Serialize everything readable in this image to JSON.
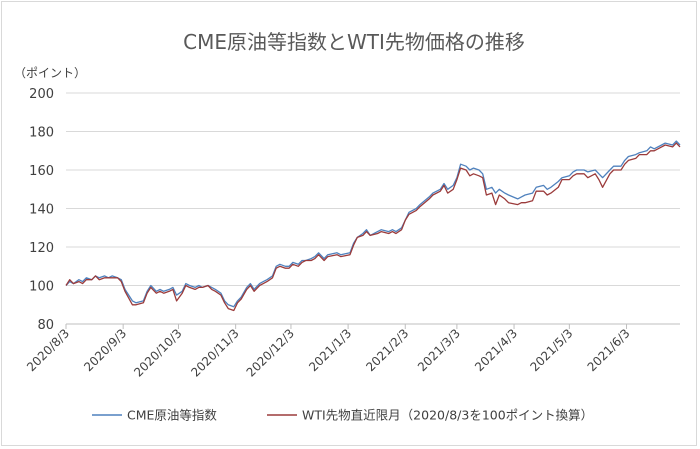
{
  "chart_data": {
    "type": "line",
    "title": "CME原油等指数とWTI先物価格の推移",
    "ylabel": "（ポイント）",
    "xlabel": "",
    "ylim": [
      80,
      200
    ],
    "yticks": [
      80,
      100,
      120,
      140,
      160,
      180,
      200
    ],
    "grid": true,
    "legend_position": "bottom",
    "x_ticks": [
      "2020/8/3",
      "2020/9/3",
      "2020/10/3",
      "2020/11/3",
      "2020/12/3",
      "2021/1/3",
      "2021/2/3",
      "2021/3/3",
      "2021/4/3",
      "2021/5/3",
      "2021/6/3"
    ],
    "series": [
      {
        "name": "CME原油等指数",
        "color": "#4f81bd",
        "points": [
          [
            "2020-08-03",
            100
          ],
          [
            "2020-08-05",
            102
          ],
          [
            "2020-08-07",
            101
          ],
          [
            "2020-08-10",
            103
          ],
          [
            "2020-08-12",
            102
          ],
          [
            "2020-08-14",
            104
          ],
          [
            "2020-08-17",
            103
          ],
          [
            "2020-08-19",
            105
          ],
          [
            "2020-08-21",
            104
          ],
          [
            "2020-08-24",
            105
          ],
          [
            "2020-08-26",
            104
          ],
          [
            "2020-08-28",
            105
          ],
          [
            "2020-08-31",
            104
          ],
          [
            "2020-09-02",
            103
          ],
          [
            "2020-09-04",
            98
          ],
          [
            "2020-09-08",
            92
          ],
          [
            "2020-09-10",
            91
          ],
          [
            "2020-09-14",
            92
          ],
          [
            "2020-09-16",
            97
          ],
          [
            "2020-09-18",
            100
          ],
          [
            "2020-09-21",
            97
          ],
          [
            "2020-09-23",
            98
          ],
          [
            "2020-09-25",
            97
          ],
          [
            "2020-09-28",
            98
          ],
          [
            "2020-09-30",
            99
          ],
          [
            "2020-10-02",
            95
          ],
          [
            "2020-10-05",
            97
          ],
          [
            "2020-10-07",
            101
          ],
          [
            "2020-10-09",
            100
          ],
          [
            "2020-10-12",
            99
          ],
          [
            "2020-10-14",
            100
          ],
          [
            "2020-10-16",
            99
          ],
          [
            "2020-10-19",
            100
          ],
          [
            "2020-10-21",
            99
          ],
          [
            "2020-10-23",
            98
          ],
          [
            "2020-10-26",
            96
          ],
          [
            "2020-10-28",
            92
          ],
          [
            "2020-10-30",
            90
          ],
          [
            "2020-11-02",
            89
          ],
          [
            "2020-11-04",
            92
          ],
          [
            "2020-11-06",
            94
          ],
          [
            "2020-11-09",
            99
          ],
          [
            "2020-11-11",
            101
          ],
          [
            "2020-11-13",
            98
          ],
          [
            "2020-11-16",
            101
          ],
          [
            "2020-11-18",
            102
          ],
          [
            "2020-11-20",
            103
          ],
          [
            "2020-11-23",
            105
          ],
          [
            "2020-11-25",
            110
          ],
          [
            "2020-11-27",
            111
          ],
          [
            "2020-11-30",
            110
          ],
          [
            "2020-12-02",
            110
          ],
          [
            "2020-12-04",
            112
          ],
          [
            "2020-12-07",
            111
          ],
          [
            "2020-12-09",
            113
          ],
          [
            "2020-12-11",
            113
          ],
          [
            "2020-12-14",
            114
          ],
          [
            "2020-12-16",
            115
          ],
          [
            "2020-12-18",
            117
          ],
          [
            "2020-12-21",
            114
          ],
          [
            "2020-12-23",
            116
          ],
          [
            "2020-12-28",
            117
          ],
          [
            "2020-12-30",
            116
          ],
          [
            "2021-01-04",
            117
          ],
          [
            "2021-01-06",
            122
          ],
          [
            "2021-01-08",
            125
          ],
          [
            "2021-01-11",
            127
          ],
          [
            "2021-01-13",
            129
          ],
          [
            "2021-01-15",
            126
          ],
          [
            "2021-01-19",
            128
          ],
          [
            "2021-01-21",
            129
          ],
          [
            "2021-01-25",
            128
          ],
          [
            "2021-01-27",
            129
          ],
          [
            "2021-01-29",
            128
          ],
          [
            "2021-02-01",
            130
          ],
          [
            "2021-02-03",
            134
          ],
          [
            "2021-02-05",
            138
          ],
          [
            "2021-02-09",
            140
          ],
          [
            "2021-02-11",
            142
          ],
          [
            "2021-02-16",
            146
          ],
          [
            "2021-02-18",
            148
          ],
          [
            "2021-02-22",
            150
          ],
          [
            "2021-02-24",
            153
          ],
          [
            "2021-02-26",
            150
          ],
          [
            "2021-03-01",
            152
          ],
          [
            "2021-03-03",
            156
          ],
          [
            "2021-03-05",
            163
          ],
          [
            "2021-03-08",
            162
          ],
          [
            "2021-03-10",
            160
          ],
          [
            "2021-03-12",
            161
          ],
          [
            "2021-03-15",
            160
          ],
          [
            "2021-03-17",
            158
          ],
          [
            "2021-03-19",
            150
          ],
          [
            "2021-03-22",
            151
          ],
          [
            "2021-03-24",
            148
          ],
          [
            "2021-03-26",
            150
          ],
          [
            "2021-03-29",
            148
          ],
          [
            "2021-03-31",
            147
          ],
          [
            "2021-04-05",
            145
          ],
          [
            "2021-04-07",
            146
          ],
          [
            "2021-04-09",
            147
          ],
          [
            "2021-04-13",
            148
          ],
          [
            "2021-04-15",
            151
          ],
          [
            "2021-04-19",
            152
          ],
          [
            "2021-04-21",
            150
          ],
          [
            "2021-04-23",
            151
          ],
          [
            "2021-04-27",
            154
          ],
          [
            "2021-04-29",
            156
          ],
          [
            "2021-05-03",
            157
          ],
          [
            "2021-05-05",
            159
          ],
          [
            "2021-05-07",
            160
          ],
          [
            "2021-05-11",
            160
          ],
          [
            "2021-05-13",
            159
          ],
          [
            "2021-05-17",
            160
          ],
          [
            "2021-05-19",
            158
          ],
          [
            "2021-05-21",
            156
          ],
          [
            "2021-05-25",
            160
          ],
          [
            "2021-05-27",
            162
          ],
          [
            "2021-05-31",
            162
          ],
          [
            "2021-06-02",
            165
          ],
          [
            "2021-06-04",
            167
          ],
          [
            "2021-06-08",
            168
          ],
          [
            "2021-06-10",
            169
          ],
          [
            "2021-06-14",
            170
          ],
          [
            "2021-06-16",
            172
          ],
          [
            "2021-06-18",
            171
          ],
          [
            "2021-06-22",
            173
          ],
          [
            "2021-06-24",
            174
          ],
          [
            "2021-06-28",
            173
          ],
          [
            "2021-06-30",
            175
          ],
          [
            "2021-07-02",
            173
          ]
        ]
      },
      {
        "name": "WTI先物直近限月（2020/8/3を100ポイント換算）",
        "color": "#9b3b3b",
        "points": [
          [
            "2020-08-03",
            100
          ],
          [
            "2020-08-05",
            103
          ],
          [
            "2020-08-07",
            101
          ],
          [
            "2020-08-10",
            102
          ],
          [
            "2020-08-12",
            101
          ],
          [
            "2020-08-14",
            103
          ],
          [
            "2020-08-17",
            103
          ],
          [
            "2020-08-19",
            105
          ],
          [
            "2020-08-21",
            103
          ],
          [
            "2020-08-24",
            104
          ],
          [
            "2020-08-26",
            104
          ],
          [
            "2020-08-28",
            104
          ],
          [
            "2020-08-31",
            104
          ],
          [
            "2020-09-02",
            102
          ],
          [
            "2020-09-04",
            97
          ],
          [
            "2020-09-08",
            90
          ],
          [
            "2020-09-10",
            90
          ],
          [
            "2020-09-14",
            91
          ],
          [
            "2020-09-16",
            96
          ],
          [
            "2020-09-18",
            99
          ],
          [
            "2020-09-21",
            96
          ],
          [
            "2020-09-23",
            97
          ],
          [
            "2020-09-25",
            96
          ],
          [
            "2020-09-28",
            97
          ],
          [
            "2020-09-30",
            98
          ],
          [
            "2020-10-02",
            92
          ],
          [
            "2020-10-05",
            96
          ],
          [
            "2020-10-07",
            100
          ],
          [
            "2020-10-09",
            99
          ],
          [
            "2020-10-12",
            98
          ],
          [
            "2020-10-14",
            99
          ],
          [
            "2020-10-16",
            99
          ],
          [
            "2020-10-19",
            100
          ],
          [
            "2020-10-21",
            98
          ],
          [
            "2020-10-23",
            97
          ],
          [
            "2020-10-26",
            95
          ],
          [
            "2020-10-28",
            91
          ],
          [
            "2020-10-30",
            88
          ],
          [
            "2020-11-02",
            87
          ],
          [
            "2020-11-04",
            91
          ],
          [
            "2020-11-06",
            93
          ],
          [
            "2020-11-09",
            98
          ],
          [
            "2020-11-11",
            100
          ],
          [
            "2020-11-13",
            97
          ],
          [
            "2020-11-16",
            100
          ],
          [
            "2020-11-18",
            101
          ],
          [
            "2020-11-20",
            102
          ],
          [
            "2020-11-23",
            104
          ],
          [
            "2020-11-25",
            109
          ],
          [
            "2020-11-27",
            110
          ],
          [
            "2020-11-30",
            109
          ],
          [
            "2020-12-02",
            109
          ],
          [
            "2020-12-04",
            111
          ],
          [
            "2020-12-07",
            110
          ],
          [
            "2020-12-09",
            112
          ],
          [
            "2020-12-11",
            113
          ],
          [
            "2020-12-14",
            113
          ],
          [
            "2020-12-16",
            114
          ],
          [
            "2020-12-18",
            116
          ],
          [
            "2020-12-21",
            113
          ],
          [
            "2020-12-23",
            115
          ],
          [
            "2020-12-28",
            116
          ],
          [
            "2020-12-30",
            115
          ],
          [
            "2021-01-04",
            116
          ],
          [
            "2021-01-06",
            121
          ],
          [
            "2021-01-08",
            125
          ],
          [
            "2021-01-11",
            126
          ],
          [
            "2021-01-13",
            128
          ],
          [
            "2021-01-15",
            126
          ],
          [
            "2021-01-19",
            127
          ],
          [
            "2021-01-21",
            128
          ],
          [
            "2021-01-25",
            127
          ],
          [
            "2021-01-27",
            128
          ],
          [
            "2021-01-29",
            127
          ],
          [
            "2021-02-01",
            129
          ],
          [
            "2021-02-03",
            134
          ],
          [
            "2021-02-05",
            137
          ],
          [
            "2021-02-09",
            139
          ],
          [
            "2021-02-11",
            141
          ],
          [
            "2021-02-16",
            145
          ],
          [
            "2021-02-18",
            147
          ],
          [
            "2021-02-22",
            149
          ],
          [
            "2021-02-24",
            152
          ],
          [
            "2021-02-26",
            148
          ],
          [
            "2021-03-01",
            150
          ],
          [
            "2021-03-03",
            155
          ],
          [
            "2021-03-05",
            161
          ],
          [
            "2021-03-08",
            160
          ],
          [
            "2021-03-10",
            157
          ],
          [
            "2021-03-12",
            158
          ],
          [
            "2021-03-15",
            157
          ],
          [
            "2021-03-17",
            156
          ],
          [
            "2021-03-19",
            147
          ],
          [
            "2021-03-22",
            148
          ],
          [
            "2021-03-24",
            142
          ],
          [
            "2021-03-26",
            147
          ],
          [
            "2021-03-29",
            145
          ],
          [
            "2021-03-31",
            143
          ],
          [
            "2021-04-05",
            142
          ],
          [
            "2021-04-07",
            143
          ],
          [
            "2021-04-09",
            143
          ],
          [
            "2021-04-13",
            144
          ],
          [
            "2021-04-15",
            149
          ],
          [
            "2021-04-19",
            149
          ],
          [
            "2021-04-21",
            147
          ],
          [
            "2021-04-23",
            148
          ],
          [
            "2021-04-27",
            151
          ],
          [
            "2021-04-29",
            155
          ],
          [
            "2021-05-03",
            155
          ],
          [
            "2021-05-05",
            157
          ],
          [
            "2021-05-07",
            158
          ],
          [
            "2021-05-11",
            158
          ],
          [
            "2021-05-13",
            156
          ],
          [
            "2021-05-17",
            158
          ],
          [
            "2021-05-19",
            155
          ],
          [
            "2021-05-21",
            151
          ],
          [
            "2021-05-25",
            158
          ],
          [
            "2021-05-27",
            160
          ],
          [
            "2021-05-31",
            160
          ],
          [
            "2021-06-02",
            163
          ],
          [
            "2021-06-04",
            165
          ],
          [
            "2021-06-08",
            166
          ],
          [
            "2021-06-10",
            168
          ],
          [
            "2021-06-14",
            168
          ],
          [
            "2021-06-16",
            170
          ],
          [
            "2021-06-18",
            170
          ],
          [
            "2021-06-22",
            172
          ],
          [
            "2021-06-24",
            173
          ],
          [
            "2021-06-28",
            172
          ],
          [
            "2021-06-30",
            174
          ],
          [
            "2021-07-02",
            172
          ]
        ]
      }
    ]
  }
}
